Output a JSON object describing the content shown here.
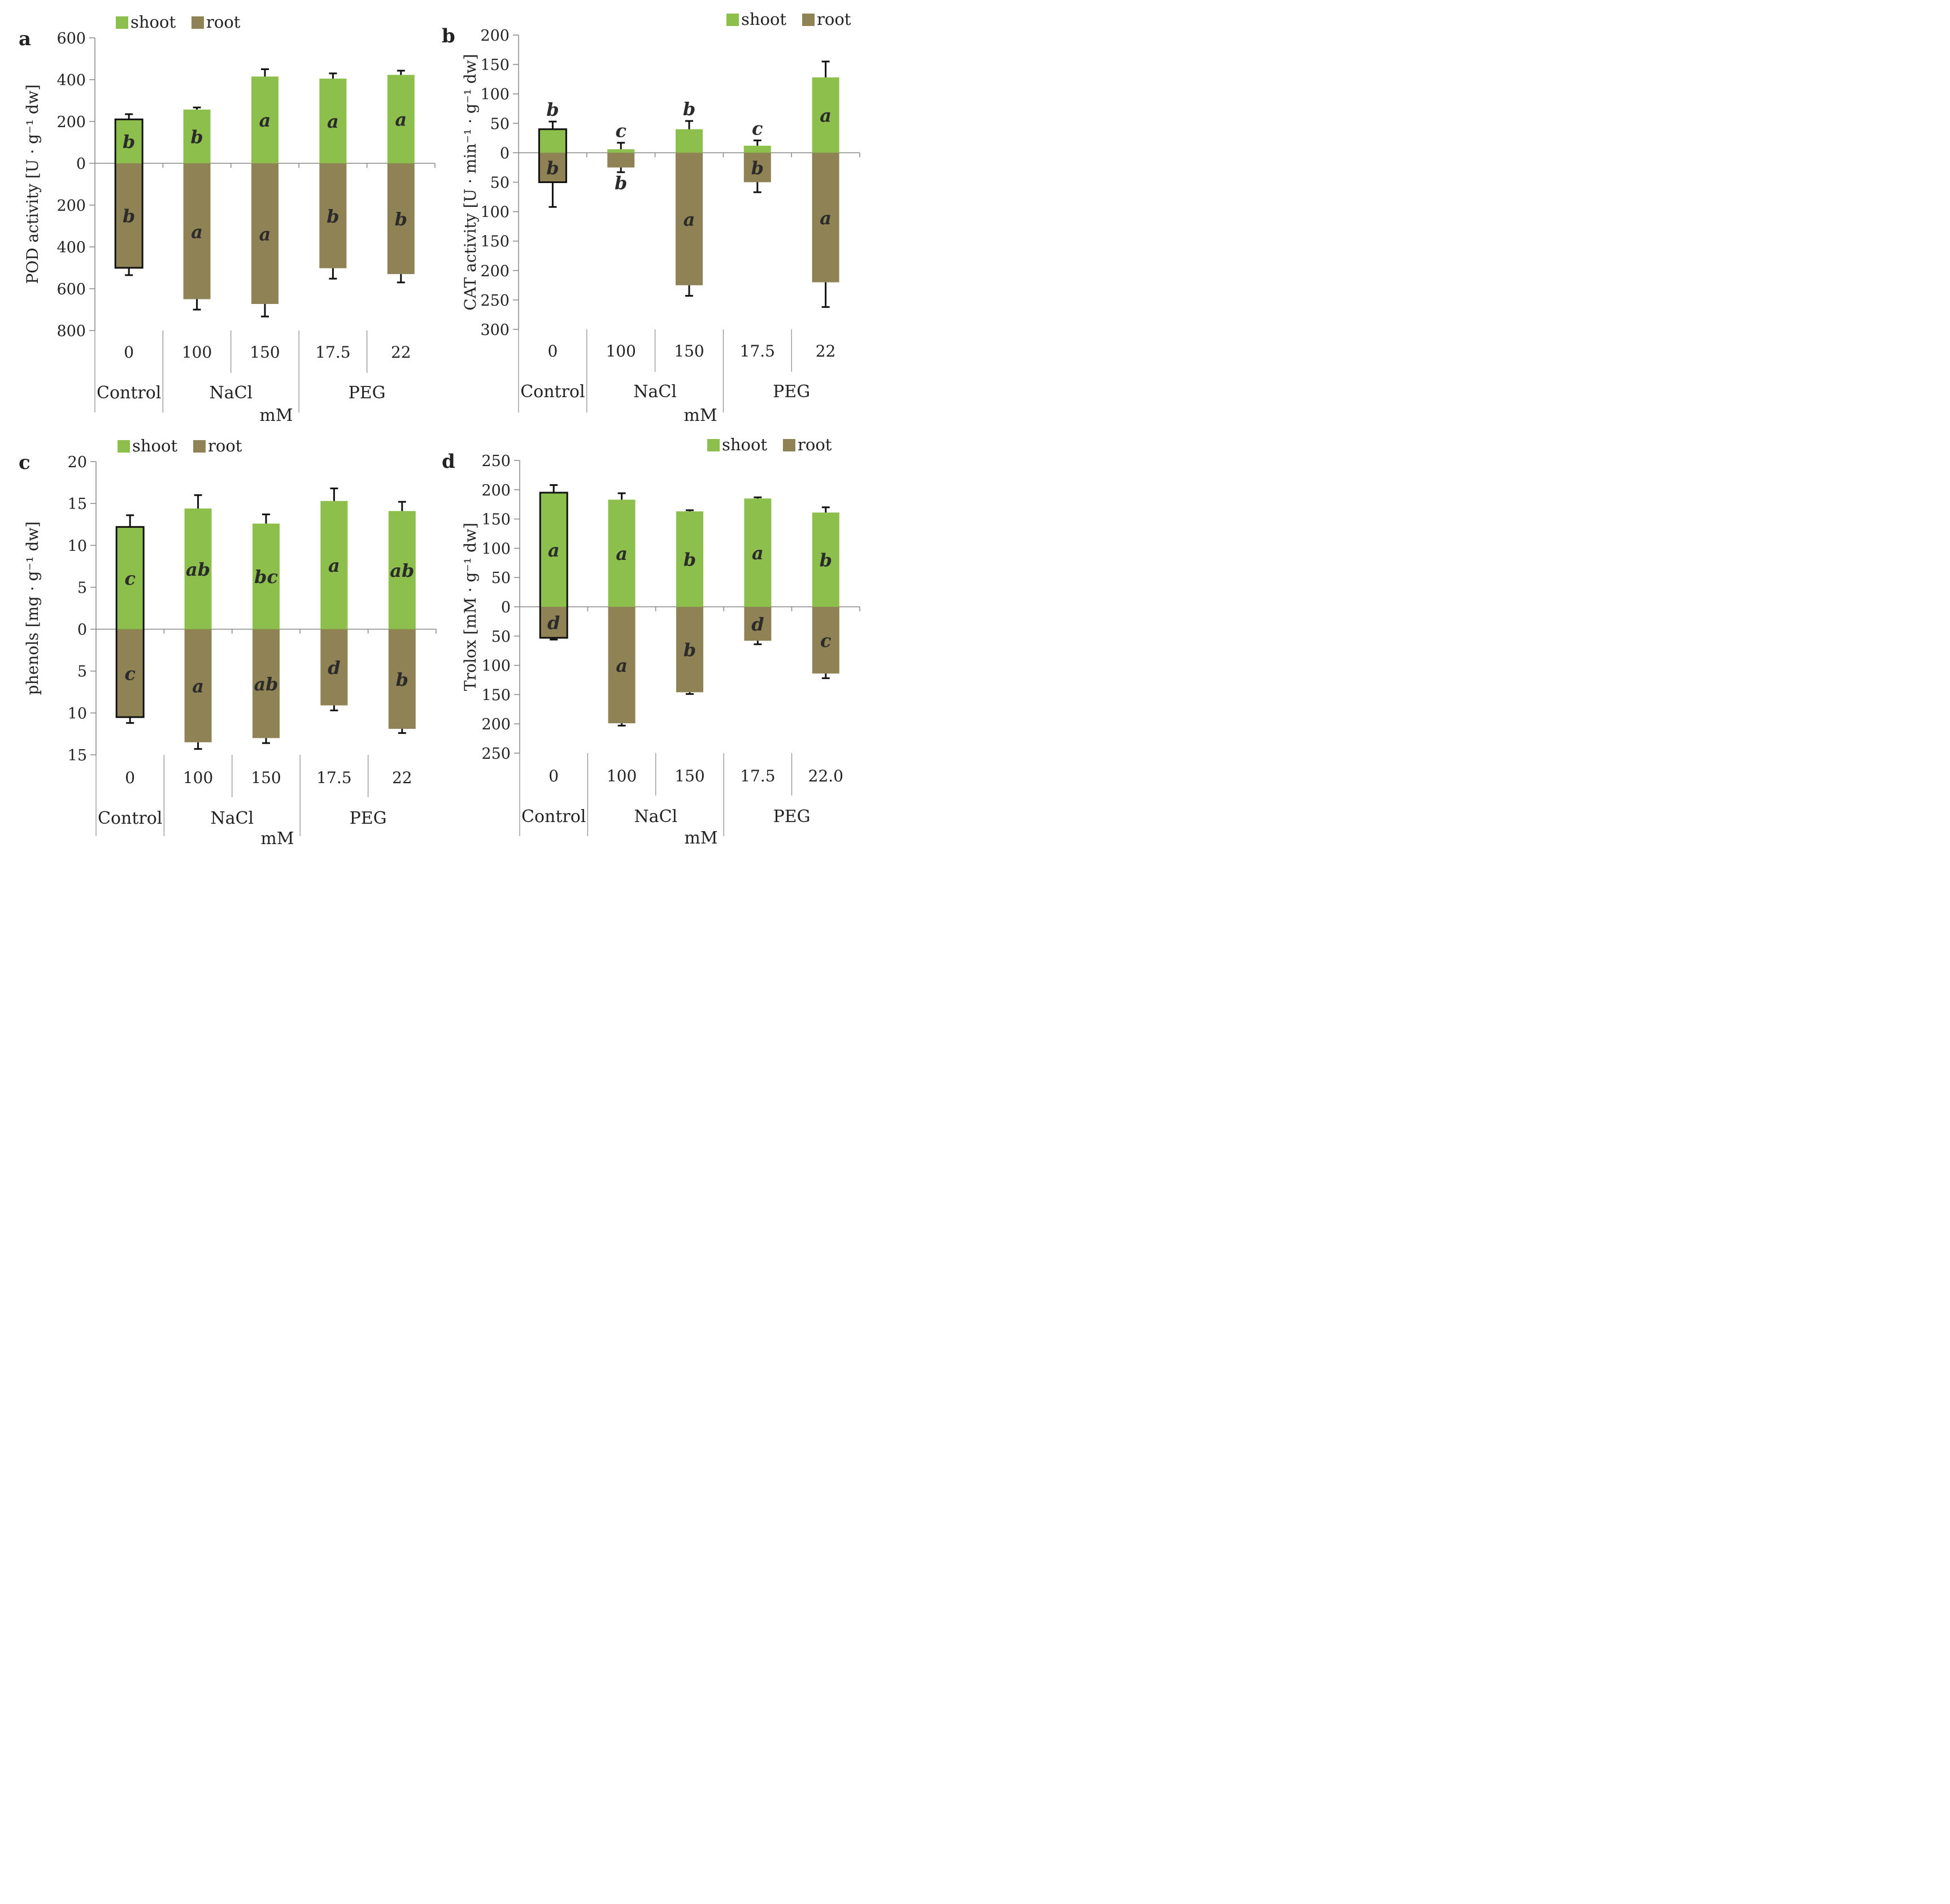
{
  "colors": {
    "shoot": "#8dbf4c",
    "root": "#8f8254",
    "axis": "#888888",
    "error": "#111111"
  },
  "chart_data": [
    {
      "panel": "a",
      "type": "bar",
      "subtype": "diverging-stacked",
      "ylabel": "POD activity [U · g⁻¹ dw]",
      "ylim": [
        -800,
        600
      ],
      "yticks": [
        600,
        400,
        200,
        0,
        -200,
        -400,
        -600,
        -800
      ],
      "ytick_labels": [
        "600",
        "400",
        "200",
        "0",
        "200",
        "400",
        "600",
        "800"
      ],
      "legend": [
        "shoot",
        "root"
      ],
      "legend_position": "top-left",
      "categories": [
        "0",
        "100",
        "150",
        "17.5",
        "22"
      ],
      "groups": [
        "Control",
        "NaCl",
        "PEG"
      ],
      "xlabel": "mM",
      "highlight_category": 0,
      "series": [
        {
          "name": "shoot",
          "values": [
            210,
            257,
            415,
            405,
            423
          ],
          "errors": [
            25,
            10,
            35,
            25,
            20
          ],
          "letters": [
            "b",
            "b",
            "a",
            "a",
            "a"
          ]
        },
        {
          "name": "root",
          "values": [
            -500,
            -650,
            -673,
            -502,
            -530
          ],
          "errors": [
            35,
            50,
            60,
            50,
            40
          ],
          "letters": [
            "b",
            "a",
            "a",
            "b",
            "b"
          ]
        }
      ]
    },
    {
      "panel": "b",
      "type": "bar",
      "subtype": "diverging-stacked",
      "ylabel": "CAT activity [U · min⁻¹ · g⁻¹ dw]",
      "ylim": [
        -300,
        200
      ],
      "yticks": [
        200,
        150,
        100,
        50,
        0,
        -50,
        -100,
        -150,
        -200,
        -250,
        -300
      ],
      "ytick_labels": [
        "200",
        "150",
        "100",
        "50",
        "0",
        "50",
        "100",
        "150",
        "200",
        "250",
        "300"
      ],
      "legend": [
        "shoot",
        "root"
      ],
      "legend_position": "top-right",
      "categories": [
        "0",
        "100",
        "150",
        "17.5",
        "22"
      ],
      "groups": [
        "Control",
        "NaCl",
        "PEG"
      ],
      "xlabel": "mM",
      "highlight_category": 0,
      "series": [
        {
          "name": "shoot",
          "values": [
            40,
            6,
            40,
            12,
            128
          ],
          "errors": [
            13,
            11,
            14,
            9,
            27
          ],
          "letters": [
            "b",
            "c",
            "b",
            "c",
            "a"
          ]
        },
        {
          "name": "root",
          "values": [
            -50,
            -25,
            -225,
            -50,
            -220
          ],
          "errors": [
            42,
            8,
            18,
            17,
            42
          ],
          "letters": [
            "b",
            "b",
            "a",
            "b",
            "a"
          ]
        }
      ]
    },
    {
      "panel": "c",
      "type": "bar",
      "subtype": "diverging-stacked",
      "ylabel": "phenols [mg · g⁻¹ dw]",
      "ylim": [
        -15,
        20
      ],
      "yticks": [
        20,
        15,
        10,
        5,
        0,
        -5,
        -10,
        -15
      ],
      "ytick_labels": [
        "20",
        "15",
        "10",
        "5",
        "0",
        "5",
        "10",
        "15"
      ],
      "legend": [
        "shoot",
        "root"
      ],
      "legend_position": "top-left",
      "categories": [
        "0",
        "100",
        "150",
        "17.5",
        "22"
      ],
      "groups": [
        "Control",
        "NaCl",
        "PEG"
      ],
      "xlabel": "mM",
      "highlight_category": 0,
      "series": [
        {
          "name": "shoot",
          "values": [
            12.2,
            14.4,
            12.6,
            15.3,
            14.1
          ],
          "errors": [
            1.4,
            1.6,
            1.1,
            1.5,
            1.1
          ],
          "letters": [
            "c",
            "ab",
            "bc",
            "a",
            "ab"
          ]
        },
        {
          "name": "root",
          "values": [
            -10.5,
            -13.5,
            -13.0,
            -9.1,
            -11.9
          ],
          "errors": [
            0.7,
            0.8,
            0.6,
            0.6,
            0.5
          ],
          "letters": [
            "c",
            "a",
            "ab",
            "d",
            "b"
          ]
        }
      ]
    },
    {
      "panel": "d",
      "type": "bar",
      "subtype": "diverging-stacked",
      "ylabel": "Trolox [mM · g⁻¹ dw]",
      "ylim": [
        -250,
        250
      ],
      "yticks": [
        250,
        200,
        150,
        100,
        50,
        0,
        -50,
        -100,
        -150,
        -200,
        -250
      ],
      "ytick_labels": [
        "250",
        "200",
        "150",
        "100",
        "50",
        "0",
        "50",
        "100",
        "150",
        "200",
        "250"
      ],
      "legend": [
        "shoot",
        "root"
      ],
      "legend_position": "top-right",
      "categories": [
        "0",
        "100",
        "150",
        "17.5",
        "22.0"
      ],
      "groups": [
        "Control",
        "NaCl",
        "PEG"
      ],
      "xlabel": "mM",
      "highlight_category": 0,
      "series": [
        {
          "name": "shoot",
          "values": [
            195,
            183,
            163,
            185,
            161
          ],
          "errors": [
            13,
            11,
            2,
            2,
            9
          ],
          "letters": [
            "a",
            "a",
            "b",
            "a",
            "b"
          ]
        },
        {
          "name": "root",
          "values": [
            -53,
            -199,
            -146,
            -58,
            -114
          ],
          "errors": [
            3,
            4,
            3,
            6,
            8
          ],
          "letters": [
            "d",
            "a",
            "b",
            "d",
            "c"
          ]
        }
      ]
    }
  ]
}
